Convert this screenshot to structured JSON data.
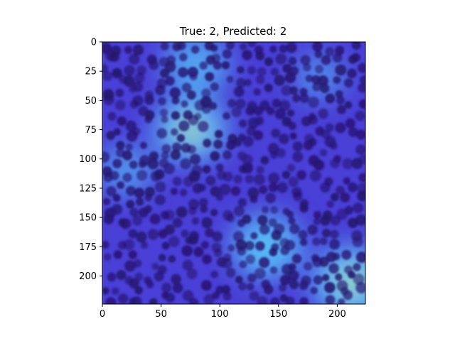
{
  "chart_data": {
    "type": "heatmap",
    "title": "True: 2, Predicted: 2",
    "xlabel": "",
    "ylabel": "",
    "xlim": [
      0,
      224
    ],
    "ylim": [
      224,
      0
    ],
    "x_ticks": [
      0,
      50,
      100,
      150,
      200
    ],
    "y_ticks": [
      0,
      25,
      50,
      75,
      100,
      125,
      150,
      175,
      200
    ],
    "image_size": [
      224,
      224
    ],
    "hotspots": [
      {
        "x": 80,
        "y": 20,
        "intensity": 0.55
      },
      {
        "x": 75,
        "y": 75,
        "intensity": 0.75
      },
      {
        "x": 140,
        "y": 175,
        "intensity": 0.7
      },
      {
        "x": 212,
        "y": 205,
        "intensity": 0.85
      },
      {
        "x": 20,
        "y": 110,
        "intensity": 0.35
      },
      {
        "x": 185,
        "y": 30,
        "intensity": 0.25
      }
    ],
    "colors": {
      "background": "#4a3fd6",
      "cell": "#25146e",
      "hot_low": "#58d7ff",
      "hot_high": "#d8e27a"
    }
  }
}
